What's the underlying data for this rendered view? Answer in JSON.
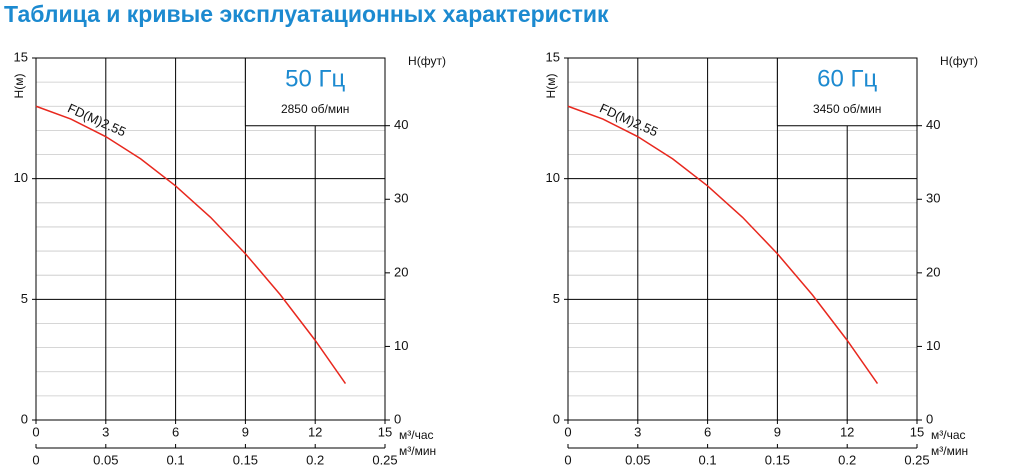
{
  "title": "Таблица и кривые эксплуатационных характеристик",
  "chart_data": [
    {
      "type": "line",
      "title": "50 Гц",
      "subtitle": "2850 об/мин",
      "xlabel": "м³/час",
      "x2label": "м³/мин",
      "ylabel": "Н(м)",
      "y2label": "Н(фут)",
      "xlim": [
        0,
        15
      ],
      "xticks": [
        0,
        3,
        6,
        9,
        12,
        15
      ],
      "x2lim": [
        0,
        0.25
      ],
      "x2ticks": [
        0,
        0.05,
        0.1,
        0.15,
        0.2,
        0.25
      ],
      "ylim": [
        0,
        15
      ],
      "yticks": [
        0,
        5,
        10,
        15
      ],
      "minor_yticks": [
        1,
        2,
        3,
        4,
        6,
        7,
        8,
        9,
        11,
        12,
        13,
        14
      ],
      "y2lim": [
        0,
        49.2
      ],
      "y2ticks": [
        0,
        10,
        20,
        30,
        40
      ],
      "grid": true,
      "series": [
        {
          "name": "FD(M)2.55",
          "color": "#e8281e",
          "x": [
            0,
            1.5,
            3,
            4.5,
            6,
            7.5,
            9,
            10.5,
            12,
            13.3
          ],
          "values": [
            13.0,
            12.47,
            11.74,
            10.82,
            9.7,
            8.4,
            6.89,
            5.19,
            3.3,
            1.51
          ]
        }
      ]
    },
    {
      "type": "line",
      "title": "60 Гц",
      "subtitle": "3450 об/мин",
      "xlabel": "м³/час",
      "x2label": "м³/мин",
      "ylabel": "Н(м)",
      "y2label": "Н(фут)",
      "xlim": [
        0,
        15
      ],
      "xticks": [
        0,
        3,
        6,
        9,
        12,
        15
      ],
      "x2lim": [
        0,
        0.25
      ],
      "x2ticks": [
        0,
        0.05,
        0.1,
        0.15,
        0.2,
        0.25
      ],
      "ylim": [
        0,
        15
      ],
      "yticks": [
        0,
        5,
        10,
        15
      ],
      "minor_yticks": [
        1,
        2,
        3,
        4,
        6,
        7,
        8,
        9,
        11,
        12,
        13,
        14
      ],
      "y2lim": [
        0,
        49.2
      ],
      "y2ticks": [
        0,
        10,
        20,
        30,
        40
      ],
      "grid": true,
      "series": [
        {
          "name": "FD(M)2.55",
          "color": "#e8281e",
          "x": [
            0,
            1.5,
            3,
            4.5,
            6,
            7.5,
            9,
            10.5,
            12,
            13.3
          ],
          "values": [
            13.0,
            12.47,
            11.74,
            10.82,
            9.7,
            8.4,
            6.89,
            5.19,
            3.3,
            1.51
          ]
        }
      ]
    }
  ]
}
